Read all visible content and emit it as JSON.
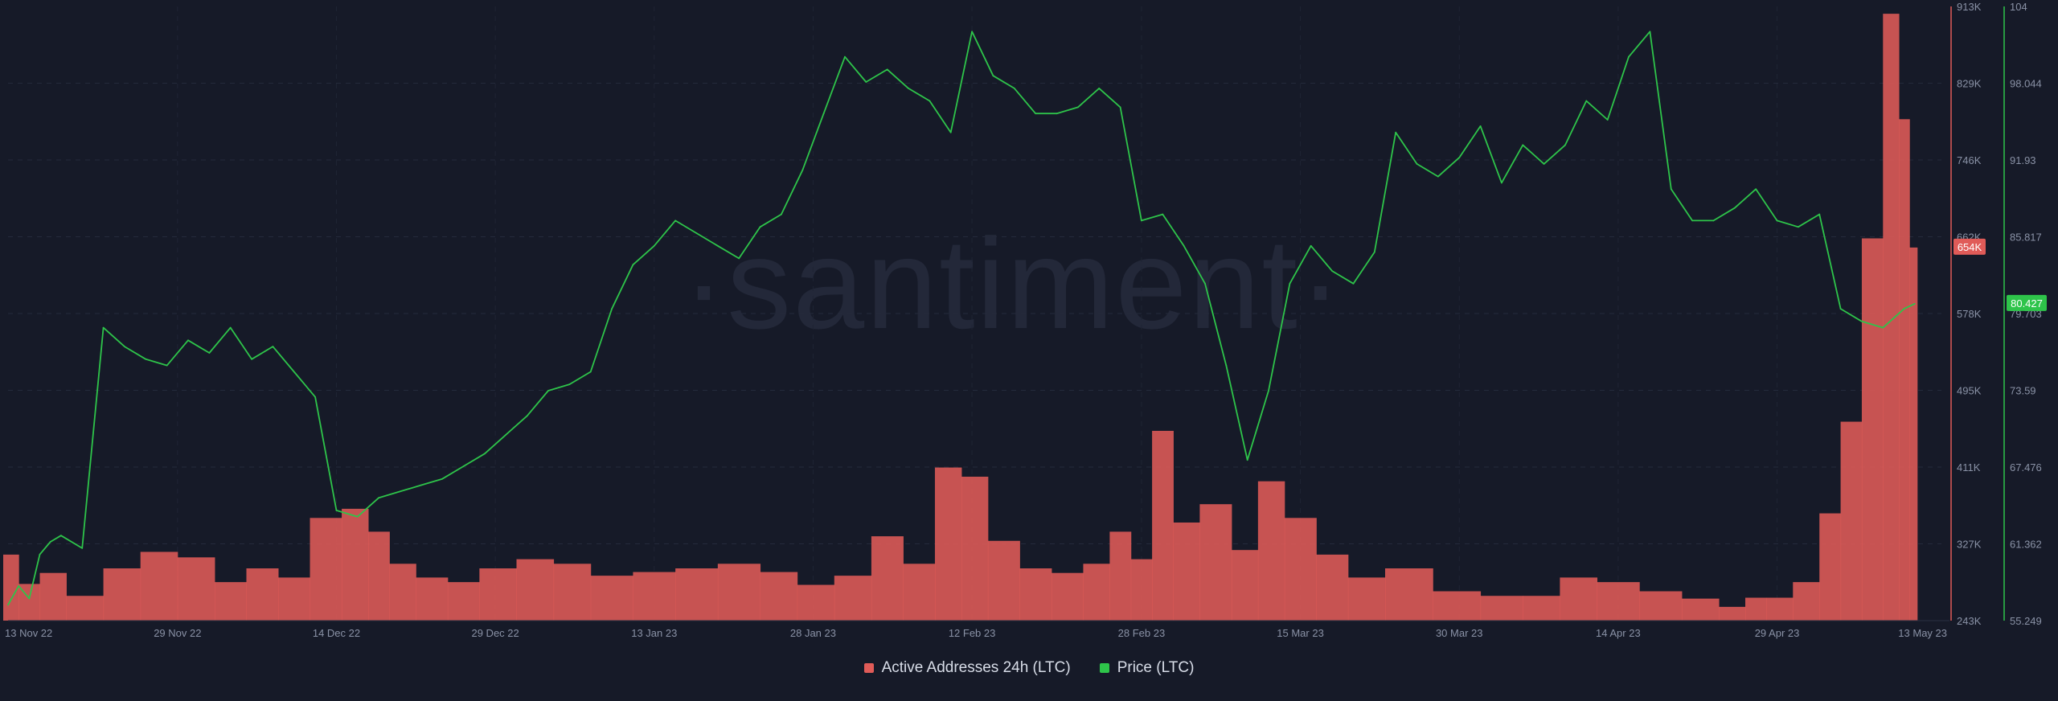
{
  "chart_data": {
    "type": "bar+line",
    "watermark": "·santiment·",
    "x_ticks": [
      "13 Nov 22",
      "29 Nov 22",
      "14 Dec 22",
      "29 Dec 22",
      "13 Jan 23",
      "28 Jan 23",
      "12 Feb 23",
      "28 Feb 23",
      "15 Mar 23",
      "30 Mar 23",
      "14 Apr 23",
      "29 Apr 23",
      "13 May 23"
    ],
    "y_left_ticks": [
      "913K",
      "829K",
      "746K",
      "662K",
      "578K",
      "495K",
      "411K",
      "327K",
      "243K"
    ],
    "y_left_range": [
      243000,
      913000
    ],
    "y_right_ticks": [
      "104",
      "98.044",
      "91.93",
      "85.817",
      "79.703",
      "73.59",
      "67.476",
      "61.362",
      "55.249"
    ],
    "y_right_range": [
      55.249,
      104
    ],
    "last_values": {
      "active_addresses": "654K",
      "price": "80.427"
    },
    "series": [
      {
        "name": "Active Addresses 24h (LTC)",
        "axis": "left",
        "kind": "bar",
        "color": "#e05b58",
        "x": [
          "13 Nov 22",
          "15 Nov 22",
          "17 Nov 22",
          "20 Nov 22",
          "24 Nov 22",
          "27 Nov 22",
          "1 Dec 22",
          "4 Dec 22",
          "7 Dec 22",
          "10 Dec 22",
          "13 Dec 22",
          "16 Dec 22",
          "18 Dec 22",
          "20 Dec 22",
          "23 Dec 22",
          "26 Dec 22",
          "29 Dec 22",
          "2 Jan 23",
          "5 Jan 23",
          "9 Jan 23",
          "13 Jan 23",
          "17 Jan 23",
          "21 Jan 23",
          "25 Jan 23",
          "28 Jan 23",
          "1 Feb 23",
          "4 Feb 23",
          "7 Feb 23",
          "10 Feb 23",
          "12 Feb 23",
          "15 Feb 23",
          "18 Feb 23",
          "21 Feb 23",
          "24 Feb 23",
          "26 Feb 23",
          "28 Feb 23",
          "2 Mar 23",
          "4 Mar 23",
          "7 Mar 23",
          "10 Mar 23",
          "12 Mar 23",
          "15 Mar 23",
          "18 Mar 23",
          "21 Mar 23",
          "25 Mar 23",
          "30 Mar 23",
          "3 Apr 23",
          "7 Apr 23",
          "10 Apr 23",
          "14 Apr 23",
          "18 Apr 23",
          "22 Apr 23",
          "25 Apr 23",
          "27 Apr 23",
          "29 Apr 23",
          "2 May 23",
          "4 May 23",
          "6 May 23",
          "8 May 23",
          "10 May 23",
          "11 May 23",
          "12 May 23"
        ],
        "values": [
          315000,
          283000,
          295000,
          270000,
          300000,
          318000,
          312000,
          285000,
          300000,
          290000,
          355000,
          365000,
          340000,
          305000,
          290000,
          285000,
          300000,
          310000,
          305000,
          292000,
          296000,
          300000,
          305000,
          296000,
          282000,
          292000,
          335000,
          305000,
          410000,
          400000,
          330000,
          300000,
          295000,
          305000,
          340000,
          310000,
          450000,
          350000,
          370000,
          320000,
          395000,
          355000,
          315000,
          290000,
          300000,
          275000,
          270000,
          270000,
          290000,
          285000,
          275000,
          267000,
          258000,
          268000,
          268000,
          285000,
          360000,
          460000,
          660000,
          905000,
          790000,
          650000
        ]
      },
      {
        "name": "Price (LTC)",
        "axis": "right",
        "kind": "line",
        "color": "#2ec44a",
        "x": [
          "13 Nov 22",
          "14 Nov 22",
          "15 Nov 22",
          "16 Nov 22",
          "17 Nov 22",
          "18 Nov 22",
          "20 Nov 22",
          "22 Nov 22",
          "24 Nov 22",
          "26 Nov 22",
          "28 Nov 22",
          "30 Nov 22",
          "2 Dec 22",
          "4 Dec 22",
          "6 Dec 22",
          "8 Dec 22",
          "10 Dec 22",
          "12 Dec 22",
          "14 Dec 22",
          "16 Dec 22",
          "18 Dec 22",
          "20 Dec 22",
          "22 Dec 22",
          "24 Dec 22",
          "26 Dec 22",
          "28 Dec 22",
          "30 Dec 22",
          "1 Jan 23",
          "3 Jan 23",
          "5 Jan 23",
          "7 Jan 23",
          "9 Jan 23",
          "11 Jan 23",
          "13 Jan 23",
          "15 Jan 23",
          "17 Jan 23",
          "19 Jan 23",
          "21 Jan 23",
          "23 Jan 23",
          "25 Jan 23",
          "27 Jan 23",
          "29 Jan 23",
          "31 Jan 23",
          "2 Feb 23",
          "4 Feb 23",
          "6 Feb 23",
          "8 Feb 23",
          "10 Feb 23",
          "12 Feb 23",
          "14 Feb 23",
          "16 Feb 23",
          "18 Feb 23",
          "20 Feb 23",
          "22 Feb 23",
          "24 Feb 23",
          "26 Feb 23",
          "28 Feb 23",
          "2 Mar 23",
          "4 Mar 23",
          "6 Mar 23",
          "8 Mar 23",
          "10 Mar 23",
          "12 Mar 23",
          "14 Mar 23",
          "16 Mar 23",
          "18 Mar 23",
          "20 Mar 23",
          "22 Mar 23",
          "24 Mar 23",
          "26 Mar 23",
          "28 Mar 23",
          "30 Mar 23",
          "1 Apr 23",
          "3 Apr 23",
          "5 Apr 23",
          "7 Apr 23",
          "9 Apr 23",
          "11 Apr 23",
          "13 Apr 23",
          "15 Apr 23",
          "17 Apr 23",
          "19 Apr 23",
          "21 Apr 23",
          "23 Apr 23",
          "25 Apr 23",
          "27 Apr 23",
          "29 Apr 23",
          "1 May 23",
          "3 May 23",
          "5 May 23",
          "7 May 23",
          "9 May 23",
          "11 May 23",
          "12 May 23"
        ],
        "values": [
          56.5,
          58.0,
          57.0,
          60.5,
          61.5,
          62.0,
          61.0,
          78.5,
          77.0,
          76.0,
          75.5,
          77.5,
          76.5,
          78.5,
          76.0,
          77.0,
          75.0,
          73.0,
          64.0,
          63.5,
          65.0,
          65.5,
          66.0,
          66.5,
          67.5,
          68.5,
          70.0,
          71.5,
          73.5,
          74.0,
          75.0,
          80.0,
          83.5,
          85.0,
          87.0,
          86.0,
          85.0,
          84.0,
          86.5,
          87.5,
          91.0,
          95.5,
          100.0,
          98.0,
          99.0,
          97.5,
          96.5,
          94.0,
          102.0,
          98.5,
          97.5,
          95.5,
          95.5,
          96.0,
          97.5,
          96.0,
          87.0,
          87.5,
          85.0,
          82.0,
          75.5,
          68.0,
          73.5,
          82.0,
          85.0,
          83.0,
          82.0,
          84.5,
          94.0,
          91.5,
          90.5,
          92.0,
          94.5,
          90.0,
          93.0,
          91.5,
          93.0,
          96.5,
          95.0,
          100.0,
          102.0,
          89.5,
          87.0,
          87.0,
          88.0,
          89.5,
          87.0,
          86.5,
          87.5,
          80.0,
          79.0,
          78.5,
          80.0,
          80.4
        ]
      }
    ]
  }
}
